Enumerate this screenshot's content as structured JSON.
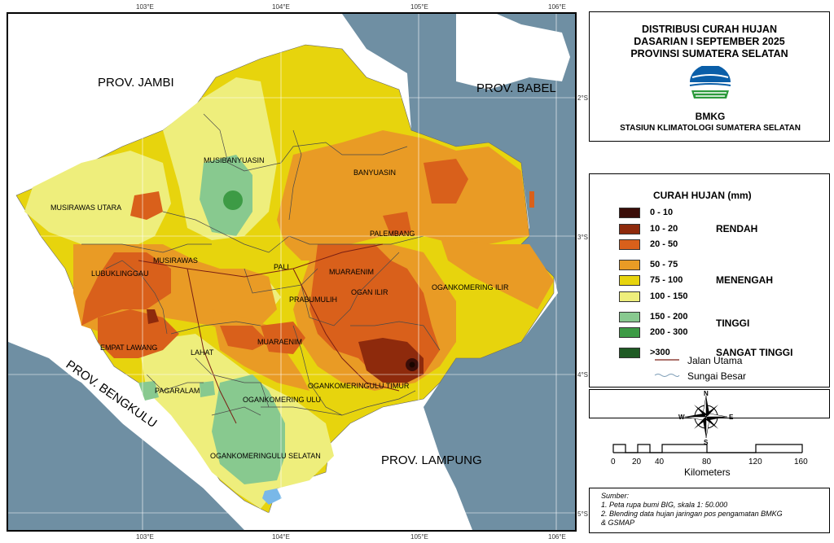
{
  "grid": {
    "lon_labels": [
      "103°E",
      "104°E",
      "105°E",
      "106°E"
    ],
    "lat_labels": [
      "2°S",
      "3°S",
      "4°S",
      "5°S"
    ]
  },
  "map": {
    "neighbors": [
      "PROV. JAMBI",
      "PROV. BABEL",
      "PROV. BENGKULU",
      "PROV. LAMPUNG"
    ],
    "regencies": [
      "MUSIBANYUASIN",
      "BANYUASIN",
      "MUSIRAWAS UTARA",
      "PALEMBANG",
      "MUSIRAWAS",
      "LUBUKLINGGAU",
      "PALI",
      "MUARAENIM",
      "OGAN ILIR",
      "OGANKOMERING ILIR",
      "PRABUMULIH",
      "EMPAT LAWANG",
      "LAHAT",
      "MUARAENIM",
      "OGANKOMERINGULU TIMUR",
      "PAGARALAM",
      "OGANKOMERING ULU",
      "OGANKOMERINGULU SELATAN"
    ]
  },
  "title": {
    "line1": "DISTRIBUSI CURAH HUJAN",
    "line2": "DASARIAN I SEPTEMBER 2025",
    "line3": "PROVINSI SUMATERA SELATAN",
    "agency": "BMKG",
    "station": "STASIUN KLIMATOLOGI SUMATERA SELATAN"
  },
  "legend": {
    "title": "CURAH HUJAN (mm)",
    "classes": [
      {
        "label": "0 - 10",
        "color": "#3b0d08"
      },
      {
        "label": "10 - 20",
        "color": "#8e2a0c"
      },
      {
        "label": "20 - 50",
        "color": "#d9601b"
      },
      {
        "label": "50 - 75",
        "color": "#e99b25"
      },
      {
        "label": "75 - 100",
        "color": "#e7d40d"
      },
      {
        "label": "100 - 150",
        "color": "#eeee7c"
      },
      {
        "label": "150 - 200",
        "color": "#88c98f"
      },
      {
        "label": "200 - 300",
        "color": "#3d9b45"
      },
      {
        "label": ">300",
        "color": "#1f5a24"
      }
    ],
    "categories": [
      "RENDAH",
      "MENENGAH",
      "TINGGI",
      "SANGAT TINGGI"
    ],
    "road_label": "Jalan Utama",
    "river_label": "Sungai Besar"
  },
  "compass": {
    "n": "N",
    "s": "S",
    "e": "E",
    "w": "W"
  },
  "scale": {
    "ticks": [
      "0",
      "20",
      "40",
      "80",
      "120",
      "160"
    ],
    "unit": "Kilometers"
  },
  "source": {
    "heading": "Sumber:",
    "line1": "1. Peta rupa bumi BIG, skala 1: 50.000",
    "line2": "2. Blending data hujan jaringan pos pengamatan BMKG",
    "line3": "& GSMAP"
  }
}
